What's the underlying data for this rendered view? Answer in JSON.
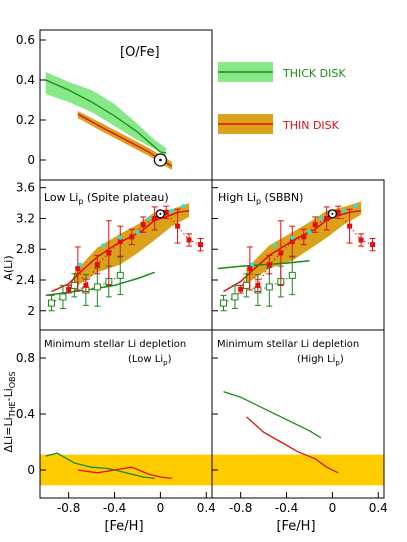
{
  "chart_data": {
    "type": "line",
    "colors": {
      "thick": "#1a8a1a",
      "thick_band": "#86e886",
      "thin": "#e01010",
      "thin_band": "#d9a21a",
      "yellow": "#ffcc00",
      "cyan": "#22e0ee",
      "dot": "#e01010"
    },
    "top": {
      "label": "[O/Fe]",
      "ylim": [
        -0.1,
        0.65
      ],
      "yticks": [
        "0.6",
        "0.4",
        "0.2",
        "0"
      ],
      "ytick_values": [
        0.6,
        0.4,
        0.2,
        0.0
      ],
      "legend": [
        {
          "name": "THICK DISK",
          "color": "#1a8a1a",
          "band": "#86e886"
        },
        {
          "name": "THIN   DISK",
          "color": "#e01010",
          "band": "#d9a21a"
        }
      ],
      "thick_line": [
        [
          -1.0,
          0.4
        ],
        [
          -0.8,
          0.35
        ],
        [
          -0.6,
          0.29
        ],
        [
          -0.4,
          0.22
        ],
        [
          -0.2,
          0.14
        ],
        [
          -0.1,
          0.09
        ],
        [
          0.0,
          0.04
        ],
        [
          0.05,
          0.035
        ]
      ],
      "thick_band_upper": [
        [
          -1.0,
          0.44
        ],
        [
          -0.8,
          0.39
        ],
        [
          -0.6,
          0.35
        ],
        [
          -0.4,
          0.28
        ],
        [
          -0.2,
          0.18
        ],
        [
          -0.05,
          0.1
        ],
        [
          0.05,
          0.06
        ]
      ],
      "thick_band_lower": [
        [
          -1.0,
          0.33
        ],
        [
          -0.8,
          0.29
        ],
        [
          -0.6,
          0.24
        ],
        [
          -0.4,
          0.17
        ],
        [
          -0.2,
          0.1
        ],
        [
          -0.05,
          0.055
        ],
        [
          0.05,
          0.02
        ]
      ],
      "thin_line": [
        [
          -0.72,
          0.23
        ],
        [
          -0.5,
          0.16
        ],
        [
          -0.3,
          0.1
        ],
        [
          -0.1,
          0.04
        ],
        [
          0.0,
          0.0
        ],
        [
          0.1,
          -0.03
        ]
      ],
      "thin_band_upper": [
        [
          -0.72,
          0.245
        ],
        [
          -0.5,
          0.18
        ],
        [
          -0.3,
          0.12
        ],
        [
          -0.1,
          0.06
        ],
        [
          0.1,
          -0.01
        ]
      ],
      "thin_band_lower": [
        [
          -0.72,
          0.21
        ],
        [
          -0.5,
          0.14
        ],
        [
          -0.3,
          0.08
        ],
        [
          -0.1,
          0.02
        ],
        [
          0.1,
          -0.05
        ]
      ],
      "sun": [
        0.0,
        0.0
      ]
    },
    "mid": {
      "ylabel": "A(Li)",
      "ylim": [
        1.75,
        3.7
      ],
      "yticks": [
        "3.6",
        "3.2",
        "2.8",
        "2.4",
        "2"
      ],
      "ytick_values": [
        3.6,
        3.2,
        2.8,
        2.4,
        2.0
      ],
      "left_label": "Low Li",
      "left_sub": "p",
      "left_suffix": " (Spite plateau)",
      "right_label": "High Li",
      "right_sub": "p",
      "right_suffix": " (SBBN)",
      "sun": [
        0.0,
        3.26
      ],
      "obs_red": [
        {
          "x": -0.8,
          "y": 2.28,
          "e": 0.05
        },
        {
          "x": -0.72,
          "y": 2.55,
          "e": 0.28
        },
        {
          "x": -0.65,
          "y": 2.33,
          "e": 0.08
        },
        {
          "x": -0.55,
          "y": 2.6,
          "e": 0.12
        },
        {
          "x": -0.45,
          "y": 2.75,
          "e": 0.42
        },
        {
          "x": -0.35,
          "y": 2.9,
          "e": 0.2
        },
        {
          "x": -0.25,
          "y": 2.96,
          "e": 0.1
        },
        {
          "x": -0.15,
          "y": 3.12,
          "e": 0.1
        },
        {
          "x": -0.05,
          "y": 3.2,
          "e": 0.15
        },
        {
          "x": 0.05,
          "y": 3.28,
          "e": 0.08
        },
        {
          "x": 0.15,
          "y": 3.1,
          "e": 0.22
        },
        {
          "x": 0.25,
          "y": 2.92,
          "e": 0.08
        },
        {
          "x": 0.35,
          "y": 2.86,
          "e": 0.08
        }
      ],
      "obs_green": [
        {
          "x": -0.95,
          "y": 2.1,
          "e": 0.1
        },
        {
          "x": -0.85,
          "y": 2.18,
          "e": 0.15
        },
        {
          "x": -0.75,
          "y": 2.33,
          "e": 0.15
        },
        {
          "x": -0.65,
          "y": 2.27,
          "e": 0.2
        },
        {
          "x": -0.55,
          "y": 2.31,
          "e": 0.25
        },
        {
          "x": -0.45,
          "y": 2.38,
          "e": 0.2
        },
        {
          "x": -0.35,
          "y": 2.46,
          "e": 0.25
        }
      ],
      "cyan": [
        [
          -0.7,
          2.6
        ],
        [
          -0.5,
          2.85
        ],
        [
          -0.35,
          2.95
        ],
        [
          -0.2,
          3.02
        ],
        [
          -0.1,
          3.2
        ],
        [
          0.0,
          3.25
        ],
        [
          0.1,
          3.3
        ],
        [
          0.2,
          3.36
        ]
      ],
      "left": {
        "thin_line": [
          [
            -0.95,
            2.25
          ],
          [
            -0.8,
            2.35
          ],
          [
            -0.7,
            2.5
          ],
          [
            -0.55,
            2.7
          ],
          [
            -0.4,
            2.85
          ],
          [
            -0.3,
            2.93
          ],
          [
            -0.15,
            3.05
          ],
          [
            -0.05,
            3.18
          ],
          [
            0.05,
            3.22
          ],
          [
            0.15,
            3.28
          ],
          [
            0.25,
            3.3
          ]
        ],
        "band_upper": [
          [
            -0.75,
            2.5
          ],
          [
            -0.55,
            2.82
          ],
          [
            -0.35,
            3.0
          ],
          [
            -0.2,
            3.12
          ],
          [
            -0.05,
            3.28
          ],
          [
            0.1,
            3.32
          ],
          [
            0.25,
            3.4
          ]
        ],
        "band_lower": [
          [
            -0.75,
            2.3
          ],
          [
            -0.55,
            2.5
          ],
          [
            -0.35,
            2.6
          ],
          [
            -0.2,
            2.75
          ],
          [
            -0.05,
            2.92
          ],
          [
            0.1,
            3.1
          ],
          [
            0.25,
            3.22
          ]
        ],
        "thick_line": [
          [
            -1.0,
            2.2
          ],
          [
            -0.8,
            2.24
          ],
          [
            -0.6,
            2.28
          ],
          [
            -0.4,
            2.33
          ],
          [
            -0.2,
            2.42
          ],
          [
            -0.05,
            2.5
          ]
        ]
      },
      "right": {
        "thin_line": [
          [
            -0.95,
            2.25
          ],
          [
            -0.8,
            2.38
          ],
          [
            -0.7,
            2.52
          ],
          [
            -0.55,
            2.72
          ],
          [
            -0.4,
            2.86
          ],
          [
            -0.3,
            2.95
          ],
          [
            -0.15,
            3.06
          ],
          [
            -0.05,
            3.18
          ],
          [
            0.05,
            3.24
          ],
          [
            0.15,
            3.28
          ],
          [
            0.25,
            3.3
          ]
        ],
        "band_upper": [
          [
            -0.75,
            2.55
          ],
          [
            -0.55,
            2.85
          ],
          [
            -0.35,
            3.02
          ],
          [
            -0.2,
            3.15
          ],
          [
            -0.05,
            3.3
          ],
          [
            0.1,
            3.35
          ],
          [
            0.25,
            3.42
          ]
        ],
        "band_lower": [
          [
            -0.75,
            2.35
          ],
          [
            -0.55,
            2.55
          ],
          [
            -0.35,
            2.65
          ],
          [
            -0.2,
            2.8
          ],
          [
            -0.05,
            2.95
          ],
          [
            0.1,
            3.12
          ],
          [
            0.25,
            3.25
          ]
        ],
        "thick_line": [
          [
            -1.0,
            2.55
          ],
          [
            -0.8,
            2.58
          ],
          [
            -0.6,
            2.6
          ],
          [
            -0.4,
            2.62
          ],
          [
            -0.2,
            2.65
          ]
        ]
      }
    },
    "bot": {
      "ylabel_main": "ΔLi=Li",
      "ylabel_sub1": "THE",
      "ylabel_mid": "-Li",
      "ylabel_sub2": "OBS",
      "ylim": [
        -0.2,
        1.0
      ],
      "yticks": [
        "0.8",
        "0.4",
        "0"
      ],
      "ytick_values": [
        0.8,
        0.4,
        0.0
      ],
      "band": [
        -0.11,
        0.11
      ],
      "left_title": "Minimum stellar Li depletion",
      "left_note": "(Low Li",
      "left_note_sub": "p",
      "left_note_end": ")",
      "right_title": "Minimum stellar Li depletion",
      "right_note": "(High Li",
      "right_note_sub": "p",
      "right_note_end": ")",
      "left_green": [
        [
          -1.0,
          0.1
        ],
        [
          -0.9,
          0.12
        ],
        [
          -0.75,
          0.05
        ],
        [
          -0.6,
          0.02
        ],
        [
          -0.45,
          0.01
        ],
        [
          -0.3,
          -0.02
        ],
        [
          -0.15,
          -0.05
        ],
        [
          -0.05,
          -0.06
        ]
      ],
      "left_red": [
        [
          -0.72,
          0.0
        ],
        [
          -0.55,
          -0.02
        ],
        [
          -0.4,
          0.0
        ],
        [
          -0.25,
          0.02
        ],
        [
          -0.1,
          -0.03
        ],
        [
          0.0,
          -0.05
        ],
        [
          0.1,
          -0.06
        ]
      ],
      "right_green": [
        [
          -0.95,
          0.56
        ],
        [
          -0.8,
          0.52
        ],
        [
          -0.6,
          0.44
        ],
        [
          -0.4,
          0.36
        ],
        [
          -0.2,
          0.28
        ],
        [
          -0.1,
          0.23
        ]
      ],
      "right_red": [
        [
          -0.75,
          0.38
        ],
        [
          -0.6,
          0.27
        ],
        [
          -0.45,
          0.2
        ],
        [
          -0.3,
          0.13
        ],
        [
          -0.15,
          0.08
        ],
        [
          -0.05,
          0.02
        ],
        [
          0.05,
          -0.02
        ]
      ]
    },
    "x": {
      "xlabel": "[Fe/H]",
      "xlim": [
        -1.05,
        0.45
      ],
      "xticks": [
        "-0.8",
        "-0.4",
        "0",
        "0.4"
      ],
      "xtick_values": [
        -0.8,
        -0.4,
        0.0,
        0.4
      ]
    }
  }
}
